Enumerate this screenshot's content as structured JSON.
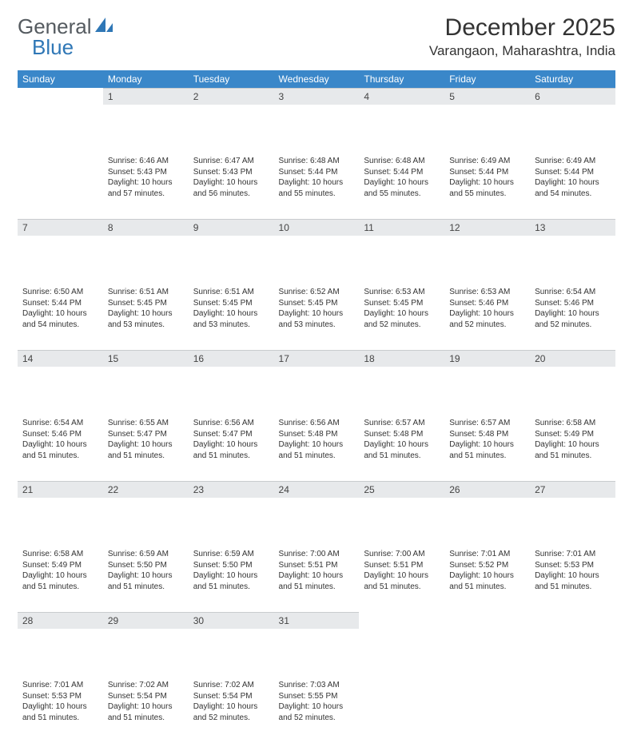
{
  "logo": {
    "text1": "General",
    "text2": "Blue",
    "color1": "#5a6066",
    "color2": "#2f77b6"
  },
  "title": "December 2025",
  "location": "Varangaon, Maharashtra, India",
  "header_bg": "#3a87c9",
  "daynum_bg": "#e7e9eb",
  "day_headers": [
    "Sunday",
    "Monday",
    "Tuesday",
    "Wednesday",
    "Thursday",
    "Friday",
    "Saturday"
  ],
  "weeks": [
    [
      null,
      {
        "n": "1",
        "sr": "6:46 AM",
        "ss": "5:43 PM",
        "dl": "10 hours and 57 minutes."
      },
      {
        "n": "2",
        "sr": "6:47 AM",
        "ss": "5:43 PM",
        "dl": "10 hours and 56 minutes."
      },
      {
        "n": "3",
        "sr": "6:48 AM",
        "ss": "5:44 PM",
        "dl": "10 hours and 55 minutes."
      },
      {
        "n": "4",
        "sr": "6:48 AM",
        "ss": "5:44 PM",
        "dl": "10 hours and 55 minutes."
      },
      {
        "n": "5",
        "sr": "6:49 AM",
        "ss": "5:44 PM",
        "dl": "10 hours and 55 minutes."
      },
      {
        "n": "6",
        "sr": "6:49 AM",
        "ss": "5:44 PM",
        "dl": "10 hours and 54 minutes."
      }
    ],
    [
      {
        "n": "7",
        "sr": "6:50 AM",
        "ss": "5:44 PM",
        "dl": "10 hours and 54 minutes."
      },
      {
        "n": "8",
        "sr": "6:51 AM",
        "ss": "5:45 PM",
        "dl": "10 hours and 53 minutes."
      },
      {
        "n": "9",
        "sr": "6:51 AM",
        "ss": "5:45 PM",
        "dl": "10 hours and 53 minutes."
      },
      {
        "n": "10",
        "sr": "6:52 AM",
        "ss": "5:45 PM",
        "dl": "10 hours and 53 minutes."
      },
      {
        "n": "11",
        "sr": "6:53 AM",
        "ss": "5:45 PM",
        "dl": "10 hours and 52 minutes."
      },
      {
        "n": "12",
        "sr": "6:53 AM",
        "ss": "5:46 PM",
        "dl": "10 hours and 52 minutes."
      },
      {
        "n": "13",
        "sr": "6:54 AM",
        "ss": "5:46 PM",
        "dl": "10 hours and 52 minutes."
      }
    ],
    [
      {
        "n": "14",
        "sr": "6:54 AM",
        "ss": "5:46 PM",
        "dl": "10 hours and 51 minutes."
      },
      {
        "n": "15",
        "sr": "6:55 AM",
        "ss": "5:47 PM",
        "dl": "10 hours and 51 minutes."
      },
      {
        "n": "16",
        "sr": "6:56 AM",
        "ss": "5:47 PM",
        "dl": "10 hours and 51 minutes."
      },
      {
        "n": "17",
        "sr": "6:56 AM",
        "ss": "5:48 PM",
        "dl": "10 hours and 51 minutes."
      },
      {
        "n": "18",
        "sr": "6:57 AM",
        "ss": "5:48 PM",
        "dl": "10 hours and 51 minutes."
      },
      {
        "n": "19",
        "sr": "6:57 AM",
        "ss": "5:48 PM",
        "dl": "10 hours and 51 minutes."
      },
      {
        "n": "20",
        "sr": "6:58 AM",
        "ss": "5:49 PM",
        "dl": "10 hours and 51 minutes."
      }
    ],
    [
      {
        "n": "21",
        "sr": "6:58 AM",
        "ss": "5:49 PM",
        "dl": "10 hours and 51 minutes."
      },
      {
        "n": "22",
        "sr": "6:59 AM",
        "ss": "5:50 PM",
        "dl": "10 hours and 51 minutes."
      },
      {
        "n": "23",
        "sr": "6:59 AM",
        "ss": "5:50 PM",
        "dl": "10 hours and 51 minutes."
      },
      {
        "n": "24",
        "sr": "7:00 AM",
        "ss": "5:51 PM",
        "dl": "10 hours and 51 minutes."
      },
      {
        "n": "25",
        "sr": "7:00 AM",
        "ss": "5:51 PM",
        "dl": "10 hours and 51 minutes."
      },
      {
        "n": "26",
        "sr": "7:01 AM",
        "ss": "5:52 PM",
        "dl": "10 hours and 51 minutes."
      },
      {
        "n": "27",
        "sr": "7:01 AM",
        "ss": "5:53 PM",
        "dl": "10 hours and 51 minutes."
      }
    ],
    [
      {
        "n": "28",
        "sr": "7:01 AM",
        "ss": "5:53 PM",
        "dl": "10 hours and 51 minutes."
      },
      {
        "n": "29",
        "sr": "7:02 AM",
        "ss": "5:54 PM",
        "dl": "10 hours and 51 minutes."
      },
      {
        "n": "30",
        "sr": "7:02 AM",
        "ss": "5:54 PM",
        "dl": "10 hours and 52 minutes."
      },
      {
        "n": "31",
        "sr": "7:03 AM",
        "ss": "5:55 PM",
        "dl": "10 hours and 52 minutes."
      },
      null,
      null,
      null
    ]
  ],
  "labels": {
    "sunrise": "Sunrise:",
    "sunset": "Sunset:",
    "daylight": "Daylight:"
  }
}
